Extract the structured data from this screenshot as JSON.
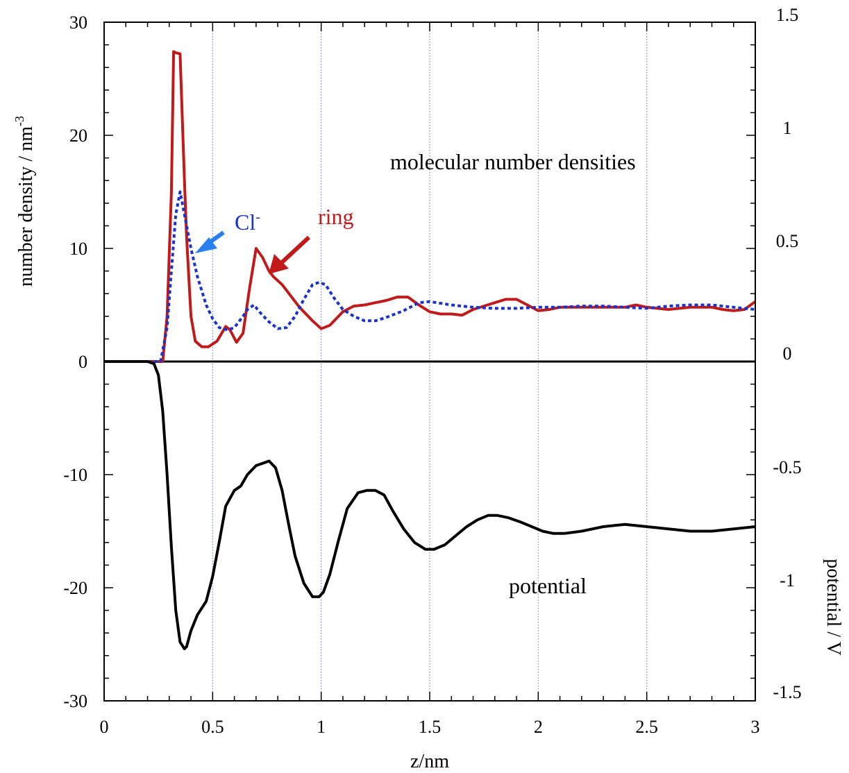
{
  "chart_data": {
    "type": "line",
    "xlabel": "z/nm",
    "ylabel_left": "number density / nm",
    "ylabel_left_sup": "-3",
    "ylabel_right": "potential / V",
    "xlim": [
      0,
      3
    ],
    "ylim_left": [
      -30,
      30
    ],
    "ylim_right": [
      -1.5,
      1.5
    ],
    "x_ticks": [
      "0",
      "0.5",
      "1",
      "1.5",
      "2",
      "2.5",
      "3"
    ],
    "y_left_ticks": [
      "-30",
      "-20",
      "-10",
      "0",
      "10",
      "20",
      "30"
    ],
    "y_right_ticks": [
      "-1.5",
      "-1",
      "-0.5",
      "0",
      "0.5",
      "1",
      "1.5"
    ],
    "grid": "vertical dotted lines at 0.5, 1, 1.5, 2, 2.5",
    "zero_line": true,
    "annotations": {
      "densities": "molecular number densities",
      "ring": "ring",
      "cl": "Cl",
      "cl_sup": "-",
      "potential": "potential"
    },
    "colors": {
      "ring": "#c01a1a",
      "cl": "#1a33cc",
      "cl_arrow": "#2a7ff0",
      "potential": "#000000",
      "grid": "#6670c8"
    },
    "series": [
      {
        "key": "ring",
        "axis": "left",
        "style": "solid",
        "x": [
          0,
          0.27,
          0.29,
          0.31,
          0.32,
          0.33,
          0.35,
          0.37,
          0.38,
          0.4,
          0.42,
          0.45,
          0.48,
          0.52,
          0.56,
          0.58,
          0.61,
          0.64,
          0.67,
          0.7,
          0.73,
          0.76,
          0.78,
          0.82,
          0.86,
          0.9,
          0.96,
          1.0,
          1.04,
          1.1,
          1.15,
          1.2,
          1.25,
          1.3,
          1.35,
          1.4,
          1.45,
          1.5,
          1.55,
          1.6,
          1.65,
          1.7,
          1.75,
          1.8,
          1.85,
          1.9,
          1.95,
          2.0,
          2.05,
          2.1,
          2.2,
          2.3,
          2.4,
          2.45,
          2.5,
          2.6,
          2.7,
          2.8,
          2.85,
          2.9,
          2.95,
          3.0
        ],
        "y": [
          0,
          0,
          4,
          15,
          27.4,
          27.3,
          27.2,
          16,
          11,
          4,
          1.8,
          1.3,
          1.3,
          1.8,
          3.1,
          2.8,
          1.7,
          2.5,
          6.5,
          10,
          9.2,
          8,
          7.5,
          6.8,
          5.8,
          4.8,
          3.6,
          2.9,
          3.2,
          4.4,
          4.9,
          5.0,
          5.2,
          5.4,
          5.7,
          5.7,
          5.0,
          4.4,
          4.2,
          4.2,
          4.1,
          4.6,
          4.9,
          5.2,
          5.5,
          5.5,
          5.0,
          4.5,
          4.6,
          4.8,
          4.8,
          4.8,
          4.8,
          5.0,
          4.8,
          4.6,
          4.8,
          4.8,
          4.6,
          4.5,
          4.6,
          5.3
        ]
      },
      {
        "key": "cl",
        "axis": "left",
        "style": "dotted",
        "x": [
          0,
          0.26,
          0.29,
          0.31,
          0.33,
          0.35,
          0.36,
          0.38,
          0.4,
          0.43,
          0.47,
          0.5,
          0.53,
          0.57,
          0.6,
          0.64,
          0.66,
          0.69,
          0.72,
          0.76,
          0.8,
          0.84,
          0.88,
          0.92,
          0.96,
          0.99,
          1.02,
          1.06,
          1.1,
          1.15,
          1.2,
          1.25,
          1.3,
          1.38,
          1.45,
          1.5,
          1.6,
          1.7,
          1.8,
          1.9,
          2.0,
          2.1,
          2.2,
          2.3,
          2.4,
          2.5,
          2.6,
          2.7,
          2.8,
          2.9,
          3.0
        ],
        "y": [
          0,
          0,
          3,
          8,
          13,
          15,
          14,
          12,
          10,
          7.5,
          5,
          3.8,
          3.0,
          2.8,
          3.0,
          4.0,
          4.6,
          5.0,
          4.3,
          3.5,
          2.9,
          3.0,
          4.0,
          5.5,
          6.8,
          7.0,
          6.8,
          5.6,
          4.6,
          4.0,
          3.6,
          3.6,
          3.9,
          4.5,
          5.2,
          5.3,
          5.0,
          4.8,
          4.7,
          4.7,
          4.8,
          4.8,
          4.9,
          4.9,
          4.8,
          4.7,
          4.9,
          5.0,
          5.0,
          4.8,
          4.6
        ]
      },
      {
        "key": "potential",
        "axis": "right",
        "style": "solid",
        "x": [
          0,
          0.2,
          0.23,
          0.25,
          0.27,
          0.29,
          0.31,
          0.33,
          0.35,
          0.37,
          0.38,
          0.4,
          0.43,
          0.47,
          0.5,
          0.53,
          0.56,
          0.6,
          0.63,
          0.66,
          0.7,
          0.73,
          0.76,
          0.79,
          0.82,
          0.85,
          0.88,
          0.92,
          0.96,
          0.99,
          1.01,
          1.04,
          1.08,
          1.12,
          1.17,
          1.21,
          1.25,
          1.29,
          1.33,
          1.38,
          1.43,
          1.48,
          1.52,
          1.57,
          1.62,
          1.67,
          1.72,
          1.77,
          1.81,
          1.86,
          1.92,
          1.97,
          2.02,
          2.07,
          2.12,
          2.2,
          2.3,
          2.4,
          2.5,
          2.6,
          2.7,
          2.8,
          2.9,
          3.0
        ],
        "y": [
          0,
          0,
          -0.01,
          -0.06,
          -0.22,
          -0.5,
          -0.82,
          -1.1,
          -1.24,
          -1.27,
          -1.26,
          -1.19,
          -1.12,
          -1.06,
          -0.95,
          -0.8,
          -0.64,
          -0.57,
          -0.55,
          -0.5,
          -0.46,
          -0.45,
          -0.44,
          -0.47,
          -0.57,
          -0.72,
          -0.86,
          -0.98,
          -1.04,
          -1.04,
          -1.02,
          -0.94,
          -0.79,
          -0.65,
          -0.58,
          -0.57,
          -0.57,
          -0.59,
          -0.66,
          -0.74,
          -0.8,
          -0.83,
          -0.83,
          -0.81,
          -0.77,
          -0.73,
          -0.7,
          -0.68,
          -0.68,
          -0.69,
          -0.71,
          -0.73,
          -0.75,
          -0.76,
          -0.76,
          -0.75,
          -0.73,
          -0.72,
          -0.73,
          -0.74,
          -0.75,
          -0.75,
          -0.74,
          -0.73
        ]
      }
    ]
  }
}
